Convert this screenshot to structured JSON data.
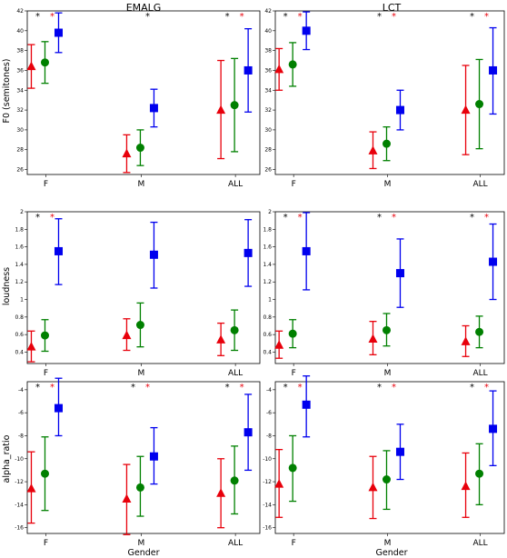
{
  "figure": {
    "column_titles": [
      "EMALG",
      "LCT"
    ],
    "xlabel": "Gender"
  },
  "colors": {
    "series_1": "#e8000b",
    "series_2": "#008000",
    "series_3": "#0000ee",
    "star_black": "#000000",
    "star_red": "#e8000b"
  },
  "chart_data": [
    {
      "type": "scatter",
      "title": "EMALG",
      "ylabel": "F0 (semitones)",
      "xlabel": "",
      "categories": [
        "F",
        "M",
        "ALL"
      ],
      "ylim": [
        25.5,
        42
      ],
      "yticks": [
        26,
        28,
        30,
        32,
        34,
        36,
        38,
        40,
        42
      ],
      "markers": [
        "triangle",
        "circle",
        "square"
      ],
      "series": [
        {
          "mean": [
            36.4,
            27.6,
            32.0
          ],
          "low": [
            34.2,
            25.7,
            27.1
          ],
          "high": [
            38.6,
            29.5,
            37.0
          ]
        },
        {
          "mean": [
            36.8,
            28.2,
            32.5
          ],
          "low": [
            34.7,
            26.4,
            27.8
          ],
          "high": [
            38.9,
            30.0,
            37.2
          ]
        },
        {
          "mean": [
            39.8,
            32.2,
            36.0
          ],
          "low": [
            37.8,
            30.3,
            31.8
          ],
          "high": [
            41.8,
            34.1,
            40.2
          ]
        }
      ],
      "stars": [
        [
          "*",
          "*"
        ],
        [
          "*"
        ],
        [
          "*",
          "*"
        ]
      ]
    },
    {
      "type": "scatter",
      "title": "LCT",
      "ylabel": "",
      "xlabel": "",
      "categories": [
        "F",
        "M",
        "ALL"
      ],
      "ylim": [
        25.5,
        42
      ],
      "yticks": [
        26,
        28,
        30,
        32,
        34,
        36,
        38,
        40,
        42
      ],
      "markers": [
        "triangle",
        "circle",
        "square"
      ],
      "series": [
        {
          "mean": [
            36.1,
            27.9,
            32.0
          ],
          "low": [
            34.0,
            26.1,
            27.5
          ],
          "high": [
            38.2,
            29.8,
            36.5
          ]
        },
        {
          "mean": [
            36.6,
            28.6,
            32.6
          ],
          "low": [
            34.4,
            26.9,
            28.1
          ],
          "high": [
            38.8,
            30.3,
            37.1
          ]
        },
        {
          "mean": [
            40.0,
            32.0,
            36.0
          ],
          "low": [
            38.1,
            30.0,
            31.6
          ],
          "high": [
            41.9,
            34.0,
            40.3
          ]
        }
      ],
      "stars": [
        [
          "*",
          "*"
        ],
        [
          "*",
          "*"
        ],
        [
          "*",
          "*"
        ]
      ]
    },
    {
      "type": "scatter",
      "title": "",
      "ylabel": "loudness",
      "xlabel": "",
      "categories": [
        "F",
        "M",
        "ALL"
      ],
      "ylim": [
        0.27,
        2.0
      ],
      "yticks": [
        0.4,
        0.6,
        0.8,
        1.0,
        1.2,
        1.4,
        1.6,
        1.8,
        2.0
      ],
      "markers": [
        "triangle",
        "circle",
        "square"
      ],
      "series": [
        {
          "mean": [
            0.46,
            0.59,
            0.54
          ],
          "low": [
            0.29,
            0.42,
            0.36
          ],
          "high": [
            0.64,
            0.78,
            0.73
          ]
        },
        {
          "mean": [
            0.59,
            0.71,
            0.65
          ],
          "low": [
            0.41,
            0.46,
            0.42
          ],
          "high": [
            0.77,
            0.96,
            0.88
          ]
        },
        {
          "mean": [
            1.55,
            1.51,
            1.53
          ],
          "low": [
            1.17,
            1.13,
            1.15
          ],
          "high": [
            1.92,
            1.88,
            1.91
          ]
        }
      ],
      "stars": [
        [
          "*",
          "*"
        ],
        [],
        []
      ]
    },
    {
      "type": "scatter",
      "title": "",
      "ylabel": "",
      "xlabel": "",
      "categories": [
        "F",
        "M",
        "ALL"
      ],
      "ylim": [
        0.27,
        2.0
      ],
      "yticks": [
        0.4,
        0.6,
        0.8,
        1.0,
        1.2,
        1.4,
        1.6,
        1.8,
        2.0
      ],
      "markers": [
        "triangle",
        "circle",
        "square"
      ],
      "series": [
        {
          "mean": [
            0.48,
            0.55,
            0.52
          ],
          "low": [
            0.33,
            0.37,
            0.35
          ],
          "high": [
            0.64,
            0.75,
            0.7
          ]
        },
        {
          "mean": [
            0.61,
            0.65,
            0.63
          ],
          "low": [
            0.45,
            0.47,
            0.45
          ],
          "high": [
            0.77,
            0.84,
            0.81
          ]
        },
        {
          "mean": [
            1.55,
            1.3,
            1.43
          ],
          "low": [
            1.11,
            0.91,
            1.0
          ],
          "high": [
            1.99,
            1.69,
            1.86
          ]
        }
      ],
      "stars": [
        [
          "*",
          "*"
        ],
        [
          "*",
          "*"
        ],
        [
          "*",
          "*"
        ]
      ]
    },
    {
      "type": "scatter",
      "title": "",
      "ylabel": "alpha_ratio",
      "xlabel": "Gender",
      "categories": [
        "F",
        "M",
        "ALL"
      ],
      "ylim": [
        -16.5,
        -3.3
      ],
      "yticks": [
        -16,
        -14,
        -12,
        -10,
        -8,
        -6,
        -4
      ],
      "markers": [
        "triangle",
        "circle",
        "square"
      ],
      "series": [
        {
          "mean": [
            -12.6,
            -13.5,
            -13.0
          ],
          "low": [
            -15.6,
            -16.6,
            -16.0
          ],
          "high": [
            -9.4,
            -10.5,
            -10.0
          ]
        },
        {
          "mean": [
            -11.3,
            -12.5,
            -11.9
          ],
          "low": [
            -14.5,
            -15.0,
            -14.8
          ],
          "high": [
            -8.1,
            -9.8,
            -8.9
          ]
        },
        {
          "mean": [
            -5.6,
            -9.8,
            -7.7
          ],
          "low": [
            -8.0,
            -12.2,
            -11.0
          ],
          "high": [
            -3.0,
            -7.3,
            -4.4
          ]
        }
      ],
      "stars": [
        [
          "*",
          "*"
        ],
        [
          "*",
          "*"
        ],
        [
          "*",
          "*"
        ]
      ]
    },
    {
      "type": "scatter",
      "title": "",
      "ylabel": "",
      "xlabel": "Gender",
      "categories": [
        "F",
        "M",
        "ALL"
      ],
      "ylim": [
        -16.5,
        -3.3
      ],
      "yticks": [
        -16,
        -14,
        -12,
        -10,
        -8,
        -6,
        -4
      ],
      "markers": [
        "triangle",
        "circle",
        "square"
      ],
      "series": [
        {
          "mean": [
            -12.2,
            -12.5,
            -12.4
          ],
          "low": [
            -15.1,
            -15.2,
            -15.1
          ],
          "high": [
            -9.2,
            -9.8,
            -9.5
          ]
        },
        {
          "mean": [
            -10.8,
            -11.8,
            -11.3
          ],
          "low": [
            -13.7,
            -14.4,
            -14.0
          ],
          "high": [
            -8.0,
            -9.3,
            -8.7
          ]
        },
        {
          "mean": [
            -5.3,
            -9.4,
            -7.4
          ],
          "low": [
            -8.1,
            -11.8,
            -10.6
          ],
          "high": [
            -2.8,
            -7.0,
            -4.1
          ]
        }
      ],
      "stars": [
        [
          "*",
          "*"
        ],
        [
          "*",
          "*"
        ],
        [
          "*",
          "*"
        ]
      ]
    }
  ]
}
